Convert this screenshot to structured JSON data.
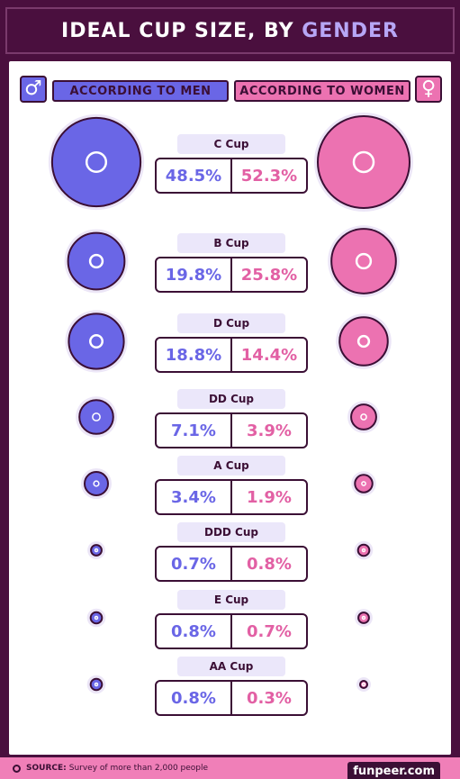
{
  "title": {
    "main": "IDEAL CUP SIZE, BY ",
    "accent": "GENDER"
  },
  "legend": {
    "men_label": "ACCORDING TO MEN",
    "women_label": "ACCORDING TO WOMEN",
    "men_symbol": "♂",
    "women_symbol": "♀"
  },
  "colors": {
    "men": "#6a66e6",
    "women": "#ec72b1",
    "outline": "#3b0f35",
    "background": "#4a0f3e"
  },
  "chart_data": {
    "type": "bubble",
    "title": "IDEAL CUP SIZE, BY GENDER",
    "series": [
      {
        "name": "ACCORDING TO MEN",
        "values": [
          48.5,
          19.8,
          18.8,
          7.1,
          3.4,
          0.7,
          0.8,
          0.8
        ]
      },
      {
        "name": "ACCORDING TO WOMEN",
        "values": [
          52.3,
          25.8,
          14.4,
          3.9,
          1.9,
          0.8,
          0.7,
          0.3
        ]
      }
    ],
    "categories": [
      "C Cup",
      "B Cup",
      "D Cup",
      "DD Cup",
      "A Cup",
      "DDD Cup",
      "E Cup",
      "AA Cup"
    ],
    "rows": [
      {
        "cup": "C Cup",
        "men": "48.5%",
        "women": "52.3%"
      },
      {
        "cup": "B Cup",
        "men": "19.8%",
        "women": "25.8%"
      },
      {
        "cup": "D Cup",
        "men": "18.8%",
        "women": "14.4%"
      },
      {
        "cup": "DD Cup",
        "men": "7.1%",
        "women": "3.9%"
      },
      {
        "cup": "A Cup",
        "men": "3.4%",
        "women": "1.9%"
      },
      {
        "cup": "DDD Cup",
        "men": "0.7%",
        "women": "0.8%"
      },
      {
        "cup": "E Cup",
        "men": "0.8%",
        "women": "0.7%"
      },
      {
        "cup": "AA Cup",
        "men": "0.8%",
        "women": "0.3%"
      }
    ],
    "unit": "%"
  },
  "footer": {
    "source_label": "SOURCE:",
    "source_text": "Survey of more than 2,000 people",
    "watermark": "funpeer.com"
  }
}
